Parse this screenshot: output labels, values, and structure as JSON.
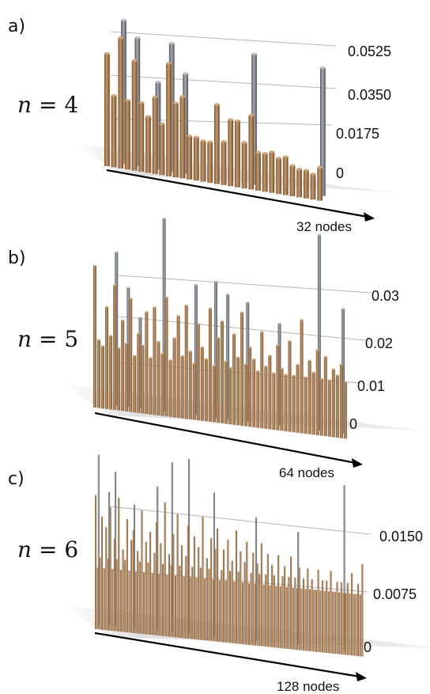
{
  "colors": {
    "brown": "#b08355",
    "brown_dark": "#7d5633",
    "gray": "#8c9096",
    "gray_dark": "#5d6167",
    "grid": "#b5b5b5"
  },
  "chart_data": [
    {
      "type": "bar",
      "panel_label": "a)",
      "n_label": "n = 4",
      "n_value": "4",
      "xlabel": "32 nodes",
      "ylim": [
        0,
        0.0525
      ],
      "ticks": [
        "0",
        "0.0175",
        "0.0350",
        "0.0525"
      ],
      "grid": true,
      "x": [
        1,
        2,
        3,
        4,
        5,
        6,
        7,
        8,
        9,
        10,
        11,
        12,
        13,
        14,
        15,
        16,
        17,
        18,
        19,
        20,
        21,
        22,
        23,
        24,
        25,
        26,
        27,
        28,
        29,
        30,
        31,
        32
      ],
      "series": [
        {
          "values": [
            0.044,
            0.028,
            0.051,
            0.027,
            0.043,
            0.027,
            0.022,
            0.03,
            0.02,
            0.044,
            0.029,
            0.032,
            0.017,
            0.017,
            0.016,
            0.016,
            0.031,
            0.017,
            0.026,
            0.026,
            0.018,
            0.029,
            0.015,
            0.015,
            0.016,
            0.014,
            0.015,
            0.012,
            0.011,
            0.011,
            0.01,
            0.013
          ],
          "overlay": [
            0.0,
            0.0,
            0.056,
            0.0,
            0.05,
            0.0,
            0.0,
            0.034,
            0.0,
            0.05,
            0.0,
            0.039,
            0.0,
            0.0,
            0.0,
            0.0,
            0.0,
            0.0,
            0.0,
            0.0,
            0.0,
            0.051,
            0.0,
            0.0,
            0.0,
            0.0,
            0.0,
            0.0,
            0.0,
            0.0,
            0.0,
            0.05
          ]
        }
      ]
    },
    {
      "type": "bar",
      "panel_label": "b)",
      "n_label": "n = 5",
      "n_value": "5",
      "xlabel": "64 nodes",
      "ylim": [
        0,
        0.03
      ],
      "ticks": [
        "0",
        "0.01",
        "0.02",
        "0.03"
      ],
      "grid": true,
      "x": [
        1,
        2,
        3,
        4,
        5,
        6,
        7,
        8,
        9,
        10,
        11,
        12,
        13,
        14,
        15,
        16,
        17,
        18,
        19,
        20,
        21,
        22,
        23,
        24,
        25,
        26,
        27,
        28,
        29,
        30,
        31,
        32,
        33,
        34,
        35,
        36,
        37,
        38,
        39,
        40,
        41,
        42,
        43,
        44,
        45,
        46,
        47,
        48,
        49,
        50,
        51,
        52,
        53,
        54,
        55,
        56,
        57,
        58,
        59,
        60,
        61,
        62,
        63,
        64
      ],
      "series": [
        {
          "values": [
            0.025,
            0.012,
            0.011,
            0.018,
            0.013,
            0.022,
            0.011,
            0.016,
            0.012,
            0.02,
            0.01,
            0.014,
            0.012,
            0.018,
            0.01,
            0.019,
            0.013,
            0.011,
            0.021,
            0.01,
            0.014,
            0.018,
            0.011,
            0.02,
            0.012,
            0.01,
            0.017,
            0.013,
            0.011,
            0.02,
            0.01,
            0.015,
            0.018,
            0.011,
            0.01,
            0.016,
            0.012,
            0.02,
            0.011,
            0.014,
            0.012,
            0.01,
            0.017,
            0.011,
            0.013,
            0.01,
            0.015,
            0.011,
            0.01,
            0.016,
            0.01,
            0.012,
            0.02,
            0.01,
            0.013,
            0.011,
            0.015,
            0.01,
            0.014,
            0.01,
            0.012,
            0.011,
            0.013,
            0.01
          ],
          "overlay": [
            0,
            0,
            0,
            0,
            0,
            0.027,
            0,
            0,
            0.021,
            0,
            0,
            0.016,
            0,
            0,
            0,
            0,
            0,
            0.034,
            0,
            0,
            0,
            0,
            0,
            0,
            0,
            0.023,
            0,
            0,
            0,
            0,
            0.024,
            0,
            0,
            0.022,
            0,
            0,
            0,
            0,
            0.021,
            0,
            0,
            0,
            0,
            0,
            0,
            0,
            0.018,
            0,
            0,
            0,
            0,
            0,
            0,
            0,
            0,
            0,
            0.035,
            0,
            0,
            0,
            0,
            0,
            0.022,
            0
          ]
        }
      ]
    },
    {
      "type": "bar",
      "panel_label": "c)",
      "n_label": "n = 6",
      "n_value": "6",
      "xlabel": "128 nodes",
      "ylim": [
        0,
        0.015
      ],
      "ticks": [
        "0",
        "0.0075",
        "0.0150"
      ],
      "grid": true,
      "x": "1..128",
      "series": [
        {
          "values": [
            0.013,
            0.006,
            0.007,
            0.011,
            0.006,
            0.01,
            0.007,
            0.012,
            0.006,
            0.009,
            0.007,
            0.013,
            0.006,
            0.008,
            0.007,
            0.011,
            0.006,
            0.009,
            0.01,
            0.006,
            0.008,
            0.007,
            0.012,
            0.006,
            0.009,
            0.007,
            0.01,
            0.006,
            0.008,
            0.011,
            0.006,
            0.009,
            0.007,
            0.013,
            0.006,
            0.008,
            0.007,
            0.01,
            0.006,
            0.012,
            0.007,
            0.009,
            0.006,
            0.008,
            0.011,
            0.006,
            0.007,
            0.01,
            0.006,
            0.009,
            0.007,
            0.012,
            0.006,
            0.008,
            0.007,
            0.01,
            0.006,
            0.009,
            0.011,
            0.006,
            0.007,
            0.009,
            0.006,
            0.01,
            0.007,
            0.008,
            0.006,
            0.011,
            0.007,
            0.009,
            0.006,
            0.008,
            0.01,
            0.006,
            0.007,
            0.009,
            0.006,
            0.008,
            0.007,
            0.01,
            0.006,
            0.007,
            0.009,
            0.006,
            0.008,
            0.007,
            0.006,
            0.009,
            0.006,
            0.007,
            0.008,
            0.006,
            0.007,
            0.009,
            0.006,
            0.007,
            0.006,
            0.008,
            0.006,
            0.007,
            0.006,
            0.008,
            0.006,
            0.007,
            0.006,
            0.006,
            0.008,
            0.006,
            0.007,
            0.006,
            0.007,
            0.006,
            0.008,
            0.006,
            0.006,
            0.007,
            0.006,
            0.007,
            0.006,
            0.006,
            0.007,
            0.006,
            0.008,
            0.006,
            0.006,
            0.007,
            0.006,
            0.009
          ],
          "overlay_indices": [
            1,
            6,
            9,
            18,
            29,
            36,
            44,
            56,
            76,
            96,
            118
          ],
          "overlay_values": [
            0.0165,
            0.013,
            0.015,
            0.012,
            0.014,
            0.0165,
            0.017,
            0.014,
            0.012,
            0.011,
            0.016
          ]
        }
      ]
    }
  ]
}
